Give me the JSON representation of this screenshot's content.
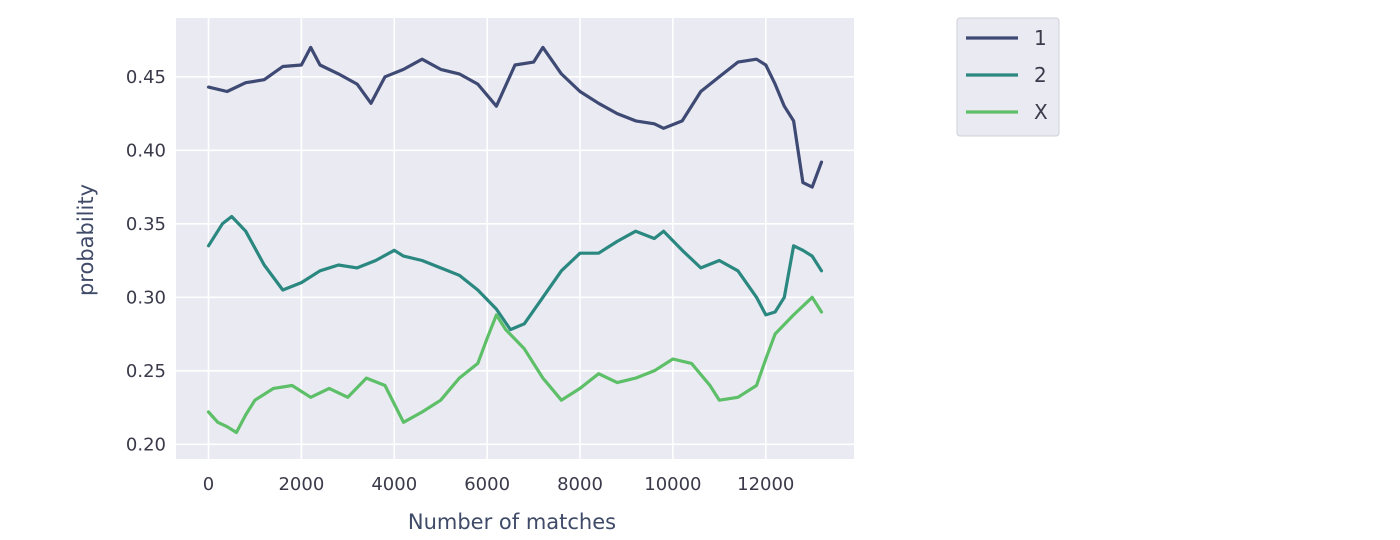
{
  "chart_data": {
    "type": "line",
    "title": "",
    "xlabel": "Number of matches",
    "ylabel": "probability",
    "xlim": [
      -700,
      13900
    ],
    "ylim": [
      0.19,
      0.49
    ],
    "xticks": [
      0,
      2000,
      4000,
      6000,
      8000,
      10000,
      12000
    ],
    "xtick_labels": [
      "0",
      "2000",
      "4000",
      "6000",
      "8000",
      "10000",
      "12000"
    ],
    "yticks": [
      0.2,
      0.25,
      0.3,
      0.35,
      0.4,
      0.45
    ],
    "ytick_labels": [
      "0.20",
      "0.25",
      "0.30",
      "0.35",
      "0.40",
      "0.45"
    ],
    "grid": true,
    "legend": "outside-top-right",
    "series": [
      {
        "name": "1",
        "color": "#3e4a74",
        "x": [
          0,
          400,
          800,
          1200,
          1600,
          2000,
          2200,
          2400,
          2800,
          3200,
          3500,
          3800,
          4200,
          4600,
          5000,
          5400,
          5800,
          6200,
          6600,
          7000,
          7200,
          7600,
          8000,
          8400,
          8800,
          9200,
          9600,
          9800,
          10200,
          10600,
          11000,
          11400,
          11800,
          12000,
          12200,
          12400,
          12600,
          12800,
          13000,
          13200
        ],
        "y": [
          0.443,
          0.44,
          0.446,
          0.448,
          0.457,
          0.458,
          0.47,
          0.458,
          0.452,
          0.445,
          0.432,
          0.45,
          0.455,
          0.462,
          0.455,
          0.452,
          0.445,
          0.43,
          0.458,
          0.46,
          0.47,
          0.452,
          0.44,
          0.432,
          0.425,
          0.42,
          0.418,
          0.415,
          0.42,
          0.44,
          0.45,
          0.46,
          0.462,
          0.458,
          0.445,
          0.43,
          0.42,
          0.378,
          0.375,
          0.392
        ]
      },
      {
        "name": "2",
        "color": "#2a8880",
        "x": [
          0,
          300,
          500,
          800,
          1200,
          1600,
          2000,
          2400,
          2800,
          3200,
          3600,
          4000,
          4200,
          4600,
          5000,
          5400,
          5800,
          6200,
          6500,
          6800,
          7200,
          7600,
          8000,
          8400,
          8800,
          9200,
          9600,
          9800,
          10200,
          10600,
          11000,
          11400,
          11800,
          12000,
          12200,
          12400,
          12600,
          12800,
          13000,
          13200
        ],
        "y": [
          0.335,
          0.35,
          0.355,
          0.345,
          0.322,
          0.305,
          0.31,
          0.318,
          0.322,
          0.32,
          0.325,
          0.332,
          0.328,
          0.325,
          0.32,
          0.315,
          0.305,
          0.292,
          0.278,
          0.282,
          0.3,
          0.318,
          0.33,
          0.33,
          0.338,
          0.345,
          0.34,
          0.345,
          0.332,
          0.32,
          0.325,
          0.318,
          0.3,
          0.288,
          0.29,
          0.3,
          0.335,
          0.332,
          0.328,
          0.318
        ]
      },
      {
        "name": "X",
        "color": "#5dbf68",
        "x": [
          0,
          200,
          400,
          600,
          800,
          1000,
          1400,
          1800,
          2200,
          2600,
          3000,
          3400,
          3800,
          4200,
          4600,
          5000,
          5400,
          5800,
          6000,
          6200,
          6400,
          6800,
          7200,
          7600,
          8000,
          8400,
          8800,
          9200,
          9600,
          10000,
          10400,
          10800,
          11000,
          11400,
          11800,
          12000,
          12200,
          12600,
          13000,
          13200
        ],
        "y": [
          0.222,
          0.215,
          0.212,
          0.208,
          0.22,
          0.23,
          0.238,
          0.24,
          0.232,
          0.238,
          0.232,
          0.245,
          0.24,
          0.215,
          0.222,
          0.23,
          0.245,
          0.255,
          0.272,
          0.288,
          0.278,
          0.265,
          0.245,
          0.23,
          0.238,
          0.248,
          0.242,
          0.245,
          0.25,
          0.258,
          0.255,
          0.24,
          0.23,
          0.232,
          0.24,
          0.258,
          0.275,
          0.288,
          0.3,
          0.29
        ]
      }
    ]
  }
}
